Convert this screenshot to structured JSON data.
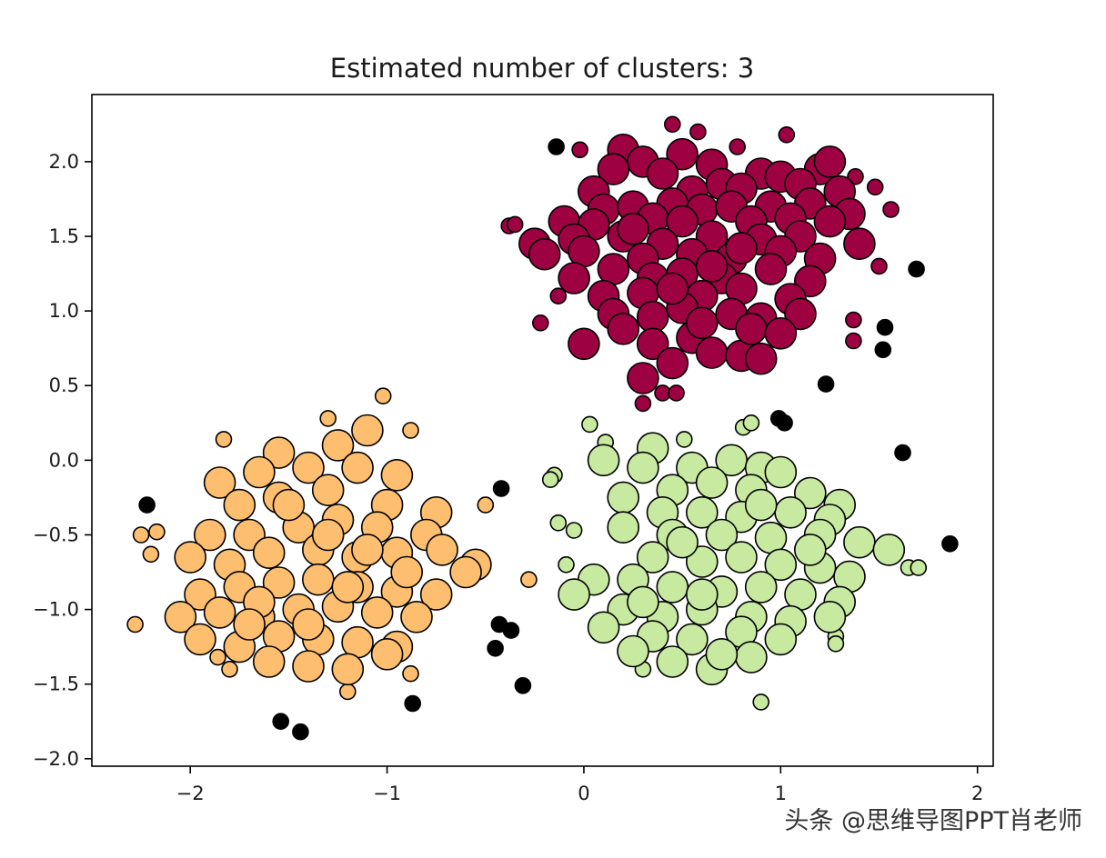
{
  "chart_data": {
    "type": "scatter",
    "title": "Estimated number of clusters: 3",
    "xlabel": "",
    "ylabel": "",
    "xlim": [
      -2.5,
      2.08
    ],
    "ylim": [
      -2.05,
      2.45
    ],
    "xticks": [
      -2,
      -1,
      0,
      1,
      2
    ],
    "xtick_labels": [
      "−2",
      "−1",
      "0",
      "1",
      "2"
    ],
    "yticks": [
      -2.0,
      -1.5,
      -1.0,
      -0.5,
      0.0,
      0.5,
      1.0,
      1.5,
      2.0
    ],
    "ytick_labels": [
      "−2.0",
      "−1.5",
      "−1.0",
      "−0.5",
      "0.0",
      "0.5",
      "1.0",
      "1.5",
      "2.0"
    ],
    "grid": false,
    "legend": "none",
    "clusters": [
      {
        "color": "#9e0142",
        "center": [
          0.55,
          1.45
        ],
        "core_points": [
          [
            0.2,
            2.08
          ],
          [
            0.3,
            2.0
          ],
          [
            0.5,
            2.05
          ],
          [
            0.65,
            1.98
          ],
          [
            0.15,
            1.95
          ],
          [
            0.4,
            1.92
          ],
          [
            0.9,
            1.92
          ],
          [
            1.0,
            1.9
          ],
          [
            1.2,
            1.95
          ],
          [
            1.25,
            2.0
          ],
          [
            1.1,
            1.85
          ],
          [
            0.7,
            1.85
          ],
          [
            0.05,
            1.8
          ],
          [
            0.55,
            1.8
          ],
          [
            0.8,
            1.82
          ],
          [
            1.3,
            1.8
          ],
          [
            0.1,
            1.68
          ],
          [
            0.25,
            1.7
          ],
          [
            0.45,
            1.72
          ],
          [
            0.6,
            1.68
          ],
          [
            0.75,
            1.7
          ],
          [
            0.95,
            1.7
          ],
          [
            1.15,
            1.72
          ],
          [
            1.35,
            1.65
          ],
          [
            -0.1,
            1.6
          ],
          [
            0.05,
            1.58
          ],
          [
            0.35,
            1.62
          ],
          [
            0.5,
            1.6
          ],
          [
            0.85,
            1.6
          ],
          [
            1.05,
            1.62
          ],
          [
            1.25,
            1.6
          ],
          [
            -0.25,
            1.45
          ],
          [
            -0.05,
            1.48
          ],
          [
            0.2,
            1.5
          ],
          [
            0.4,
            1.45
          ],
          [
            0.65,
            1.5
          ],
          [
            0.9,
            1.48
          ],
          [
            1.1,
            1.5
          ],
          [
            1.4,
            1.45
          ],
          [
            -0.2,
            1.38
          ],
          [
            0.0,
            1.4
          ],
          [
            0.3,
            1.35
          ],
          [
            0.55,
            1.38
          ],
          [
            0.75,
            1.35
          ],
          [
            1.0,
            1.4
          ],
          [
            1.2,
            1.35
          ],
          [
            -0.05,
            1.22
          ],
          [
            0.15,
            1.28
          ],
          [
            0.35,
            1.22
          ],
          [
            0.5,
            1.25
          ],
          [
            0.7,
            1.22
          ],
          [
            0.95,
            1.28
          ],
          [
            1.15,
            1.2
          ],
          [
            0.1,
            1.1
          ],
          [
            0.3,
            1.12
          ],
          [
            0.6,
            1.1
          ],
          [
            0.8,
            1.15
          ],
          [
            1.05,
            1.08
          ],
          [
            0.15,
            0.98
          ],
          [
            0.35,
            0.96
          ],
          [
            0.5,
            1.02
          ],
          [
            0.75,
            0.98
          ],
          [
            0.9,
            0.95
          ],
          [
            1.1,
            0.98
          ],
          [
            0.0,
            0.78
          ],
          [
            0.35,
            0.78
          ],
          [
            0.55,
            0.82
          ],
          [
            0.65,
            0.72
          ],
          [
            0.8,
            0.7
          ],
          [
            0.9,
            0.68
          ],
          [
            0.3,
            0.55
          ],
          [
            0.45,
            0.65
          ],
          [
            0.2,
            0.88
          ],
          [
            0.6,
            0.92
          ],
          [
            0.85,
            0.88
          ],
          [
            1.0,
            0.85
          ],
          [
            0.45,
            1.15
          ],
          [
            0.65,
            1.3
          ],
          [
            0.25,
            1.55
          ],
          [
            0.8,
            1.42
          ]
        ],
        "edge_points": [
          [
            0.45,
            2.25
          ],
          [
            0.58,
            2.2
          ],
          [
            1.03,
            2.18
          ],
          [
            0.78,
            2.1
          ],
          [
            -0.02,
            2.08
          ],
          [
            1.38,
            1.9
          ],
          [
            1.48,
            1.83
          ],
          [
            1.56,
            1.68
          ],
          [
            -0.38,
            1.57
          ],
          [
            -0.35,
            1.58
          ],
          [
            1.5,
            1.3
          ],
          [
            -0.13,
            1.1
          ],
          [
            -0.22,
            0.92
          ],
          [
            1.37,
            0.94
          ],
          [
            1.37,
            0.8
          ],
          [
            0.4,
            0.45
          ],
          [
            0.47,
            0.45
          ],
          [
            0.3,
            0.38
          ]
        ]
      },
      {
        "color": "#fdbf6f",
        "center": [
          -1.3,
          -0.7
        ],
        "core_points": [
          [
            -1.1,
            0.2
          ],
          [
            -1.25,
            0.1
          ],
          [
            -1.55,
            0.05
          ],
          [
            -1.4,
            -0.05
          ],
          [
            -1.65,
            -0.08
          ],
          [
            -1.85,
            -0.15
          ],
          [
            -1.15,
            -0.05
          ],
          [
            -0.95,
            -0.1
          ],
          [
            -1.3,
            -0.2
          ],
          [
            -1.55,
            -0.25
          ],
          [
            -1.75,
            -0.3
          ],
          [
            -1.0,
            -0.3
          ],
          [
            -0.75,
            -0.35
          ],
          [
            -1.9,
            -0.5
          ],
          [
            -1.7,
            -0.5
          ],
          [
            -1.45,
            -0.45
          ],
          [
            -1.25,
            -0.4
          ],
          [
            -1.05,
            -0.45
          ],
          [
            -0.8,
            -0.5
          ],
          [
            -2.0,
            -0.65
          ],
          [
            -1.8,
            -0.7
          ],
          [
            -1.6,
            -0.62
          ],
          [
            -1.35,
            -0.6
          ],
          [
            -1.15,
            -0.65
          ],
          [
            -0.95,
            -0.62
          ],
          [
            -0.72,
            -0.6
          ],
          [
            -0.55,
            -0.7
          ],
          [
            -1.95,
            -0.9
          ],
          [
            -1.75,
            -0.85
          ],
          [
            -1.55,
            -0.82
          ],
          [
            -1.35,
            -0.8
          ],
          [
            -1.15,
            -0.85
          ],
          [
            -0.95,
            -0.88
          ],
          [
            -0.75,
            -0.9
          ],
          [
            -2.05,
            -1.05
          ],
          [
            -1.85,
            -1.02
          ],
          [
            -1.65,
            -1.05
          ],
          [
            -1.45,
            -1.0
          ],
          [
            -1.25,
            -0.98
          ],
          [
            -1.05,
            -1.02
          ],
          [
            -0.85,
            -1.05
          ],
          [
            -1.95,
            -1.2
          ],
          [
            -1.75,
            -1.25
          ],
          [
            -1.55,
            -1.18
          ],
          [
            -1.35,
            -1.2
          ],
          [
            -1.15,
            -1.22
          ],
          [
            -0.95,
            -1.25
          ],
          [
            -1.6,
            -1.35
          ],
          [
            -1.4,
            -1.38
          ],
          [
            -1.2,
            -1.4
          ],
          [
            -1.0,
            -1.3
          ],
          [
            -1.5,
            -0.3
          ],
          [
            -1.2,
            -0.85
          ],
          [
            -1.65,
            -0.95
          ],
          [
            -0.9,
            -0.75
          ],
          [
            -1.4,
            -1.1
          ],
          [
            -1.7,
            -1.1
          ],
          [
            -1.3,
            -0.5
          ],
          [
            -1.1,
            -0.6
          ],
          [
            -0.6,
            -0.75
          ]
        ],
        "edge_points": [
          [
            -1.02,
            0.43
          ],
          [
            -1.3,
            0.28
          ],
          [
            -0.88,
            0.2
          ],
          [
            -1.83,
            0.14
          ],
          [
            -0.5,
            -0.3
          ],
          [
            -2.17,
            -0.48
          ],
          [
            -2.25,
            -0.5
          ],
          [
            -2.2,
            -0.63
          ],
          [
            -0.28,
            -0.8
          ],
          [
            -2.28,
            -1.1
          ],
          [
            -1.86,
            -1.32
          ],
          [
            -1.8,
            -1.4
          ],
          [
            -0.88,
            -1.43
          ],
          [
            -1.2,
            -1.55
          ]
        ]
      },
      {
        "color": "#c7e9a0",
        "center": [
          0.75,
          -0.75
        ],
        "core_points": [
          [
            0.35,
            0.08
          ],
          [
            0.1,
            0.0
          ],
          [
            0.3,
            -0.05
          ],
          [
            0.55,
            -0.05
          ],
          [
            0.75,
            0.0
          ],
          [
            0.9,
            -0.05
          ],
          [
            1.0,
            -0.08
          ],
          [
            0.45,
            -0.2
          ],
          [
            0.65,
            -0.15
          ],
          [
            0.85,
            -0.2
          ],
          [
            1.15,
            -0.22
          ],
          [
            1.3,
            -0.3
          ],
          [
            0.2,
            -0.25
          ],
          [
            0.4,
            -0.35
          ],
          [
            0.6,
            -0.35
          ],
          [
            0.8,
            -0.38
          ],
          [
            1.05,
            -0.35
          ],
          [
            1.25,
            -0.4
          ],
          [
            0.2,
            -0.45
          ],
          [
            0.45,
            -0.5
          ],
          [
            0.7,
            -0.5
          ],
          [
            0.95,
            -0.52
          ],
          [
            1.2,
            -0.5
          ],
          [
            1.4,
            -0.55
          ],
          [
            1.55,
            -0.6
          ],
          [
            0.35,
            -0.65
          ],
          [
            0.6,
            -0.68
          ],
          [
            0.8,
            -0.65
          ],
          [
            1.0,
            -0.7
          ],
          [
            1.2,
            -0.72
          ],
          [
            1.35,
            -0.78
          ],
          [
            0.05,
            -0.8
          ],
          [
            0.25,
            -0.8
          ],
          [
            0.45,
            -0.85
          ],
          [
            0.7,
            -0.88
          ],
          [
            0.9,
            -0.85
          ],
          [
            1.1,
            -0.9
          ],
          [
            1.3,
            -0.95
          ],
          [
            -0.05,
            -0.9
          ],
          [
            0.2,
            -1.0
          ],
          [
            0.4,
            -1.05
          ],
          [
            0.6,
            -1.0
          ],
          [
            0.85,
            -1.05
          ],
          [
            1.05,
            -1.08
          ],
          [
            1.25,
            -1.05
          ],
          [
            0.1,
            -1.12
          ],
          [
            0.35,
            -1.18
          ],
          [
            0.55,
            -1.2
          ],
          [
            0.8,
            -1.15
          ],
          [
            1.0,
            -1.2
          ],
          [
            0.25,
            -1.28
          ],
          [
            0.45,
            -1.35
          ],
          [
            0.65,
            -1.4
          ],
          [
            0.85,
            -1.32
          ],
          [
            0.7,
            -1.3
          ],
          [
            0.5,
            -0.55
          ],
          [
            0.9,
            -0.3
          ],
          [
            0.3,
            -0.95
          ],
          [
            1.15,
            -0.6
          ],
          [
            0.6,
            -0.9
          ]
        ],
        "edge_points": [
          [
            0.03,
            0.24
          ],
          [
            0.11,
            0.12
          ],
          [
            0.51,
            0.14
          ],
          [
            0.81,
            0.22
          ],
          [
            0.85,
            0.25
          ],
          [
            -0.15,
            -0.1
          ],
          [
            -0.17,
            -0.13
          ],
          [
            -0.13,
            -0.42
          ],
          [
            -0.05,
            -0.47
          ],
          [
            -0.09,
            -0.7
          ],
          [
            1.65,
            -0.72
          ],
          [
            1.7,
            -0.72
          ],
          [
            1.28,
            -1.18
          ],
          [
            1.28,
            -1.23
          ],
          [
            0.3,
            -1.4
          ],
          [
            0.9,
            -1.62
          ]
        ]
      }
    ],
    "noise": {
      "color": "#000000",
      "points": [
        [
          -0.14,
          2.1
        ],
        [
          1.69,
          1.28
        ],
        [
          1.53,
          0.89
        ],
        [
          1.52,
          0.74
        ],
        [
          1.23,
          0.51
        ],
        [
          0.99,
          0.28
        ],
        [
          1.02,
          0.25
        ],
        [
          1.62,
          0.05
        ],
        [
          1.86,
          -0.56
        ],
        [
          -0.42,
          -0.19
        ],
        [
          -2.22,
          -0.3
        ],
        [
          -0.43,
          -1.1
        ],
        [
          -0.37,
          -1.14
        ],
        [
          -0.45,
          -1.26
        ],
        [
          -0.31,
          -1.51
        ],
        [
          -0.87,
          -1.63
        ],
        [
          -1.54,
          -1.75
        ],
        [
          -1.44,
          -1.82
        ]
      ]
    }
  },
  "watermark": "头条 @思维导图PPT肖老师"
}
